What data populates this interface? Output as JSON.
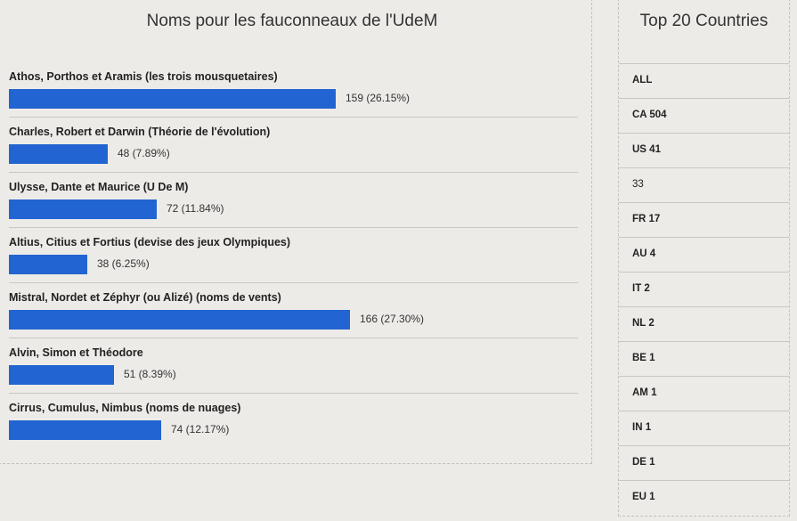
{
  "poll": {
    "title": "Noms pour les fauconneaux de l'UdeM"
  },
  "chart_data": {
    "type": "bar",
    "orientation": "horizontal",
    "title": "Noms pour les fauconneaux de l'UdeM",
    "categories": [
      "Athos, Porthos et Aramis (les trois mousquetaires)",
      "Charles, Robert et Darwin (Théorie de l'évolution)",
      "Ulysse, Dante et Maurice (U De M)",
      "Altius, Citius et Fortius (devise des jeux Olympiques)",
      "Mistral, Nordet et Zéphyr (ou Alizé) (noms de vents)",
      "Alvin, Simon et Théodore",
      "Cirrus, Cumulus, Nimbus (noms de nuages)"
    ],
    "values": [
      159,
      48,
      72,
      38,
      166,
      51,
      74
    ],
    "value_labels": [
      "159 (26.15%)",
      "48 (7.89%)",
      "72 (11.84%)",
      "38 (6.25%)",
      "166 (27.30%)",
      "51 (8.39%)",
      "74 (12.17%)"
    ],
    "bar_color": "#2264d1"
  },
  "countries": {
    "title": "Top 20 Countries",
    "items": [
      {
        "label": "ALL",
        "bold": true
      },
      {
        "label": "CA 504",
        "bold": true
      },
      {
        "label": "US 41",
        "bold": true
      },
      {
        "label": "33",
        "bold": false
      },
      {
        "label": "FR 17",
        "bold": true
      },
      {
        "label": "AU 4",
        "bold": true
      },
      {
        "label": "IT 2",
        "bold": true
      },
      {
        "label": "NL 2",
        "bold": true
      },
      {
        "label": "BE 1",
        "bold": true
      },
      {
        "label": "AM 1",
        "bold": true
      },
      {
        "label": "IN 1",
        "bold": true
      },
      {
        "label": "DE 1",
        "bold": true
      },
      {
        "label": "EU 1",
        "bold": true
      }
    ]
  }
}
